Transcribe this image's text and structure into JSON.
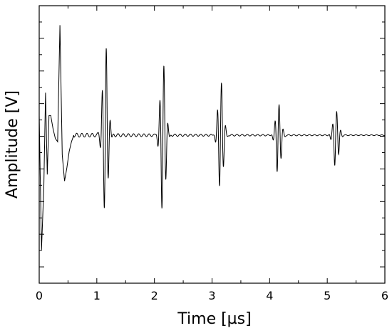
{
  "chart_data": {
    "type": "line",
    "title": "",
    "xlabel": "Time [µs]",
    "ylabel": "Amplitude [V]",
    "xlim": [
      0,
      6
    ],
    "x_ticks": [
      "0",
      "1",
      "2",
      "3",
      "4",
      "5",
      "6"
    ],
    "y_tick_labels": "none (unlabeled ticks)",
    "grid": false,
    "legend": "none",
    "line_color": "#000000",
    "series": [
      {
        "description_points": [
          [
            0.0,
            0.3
          ],
          [
            0.04,
            -1.75
          ],
          [
            0.08,
            -0.8
          ],
          [
            0.11,
            0.65
          ],
          [
            0.14,
            -0.6
          ],
          [
            0.17,
            0.3
          ],
          [
            0.2,
            0.3
          ],
          [
            0.24,
            0.1
          ],
          [
            0.28,
            -0.05
          ],
          [
            0.32,
            -0.1
          ],
          [
            0.36,
            1.68
          ],
          [
            0.4,
            -0.3
          ],
          [
            0.44,
            -0.7
          ],
          [
            0.48,
            -0.5
          ],
          [
            0.52,
            -0.25
          ],
          [
            0.56,
            -0.1
          ],
          [
            0.6,
            0.0
          ],
          [
            0.7,
            0.0
          ],
          [
            6.0,
            0.0
          ]
        ],
        "echoes": [
          {
            "center_us": 1.15,
            "peak_pos": 1.4,
            "peak_neg": -1.22
          },
          {
            "center_us": 2.15,
            "peak_pos": 1.1,
            "peak_neg": -1.22
          },
          {
            "center_us": 3.15,
            "peak_pos": 0.82,
            "peak_neg": -0.85
          },
          {
            "center_us": 4.15,
            "peak_pos": 0.48,
            "peak_neg": -0.62
          },
          {
            "center_us": 5.15,
            "peak_pos": 0.38,
            "peak_neg": -0.52
          }
        ]
      }
    ]
  }
}
